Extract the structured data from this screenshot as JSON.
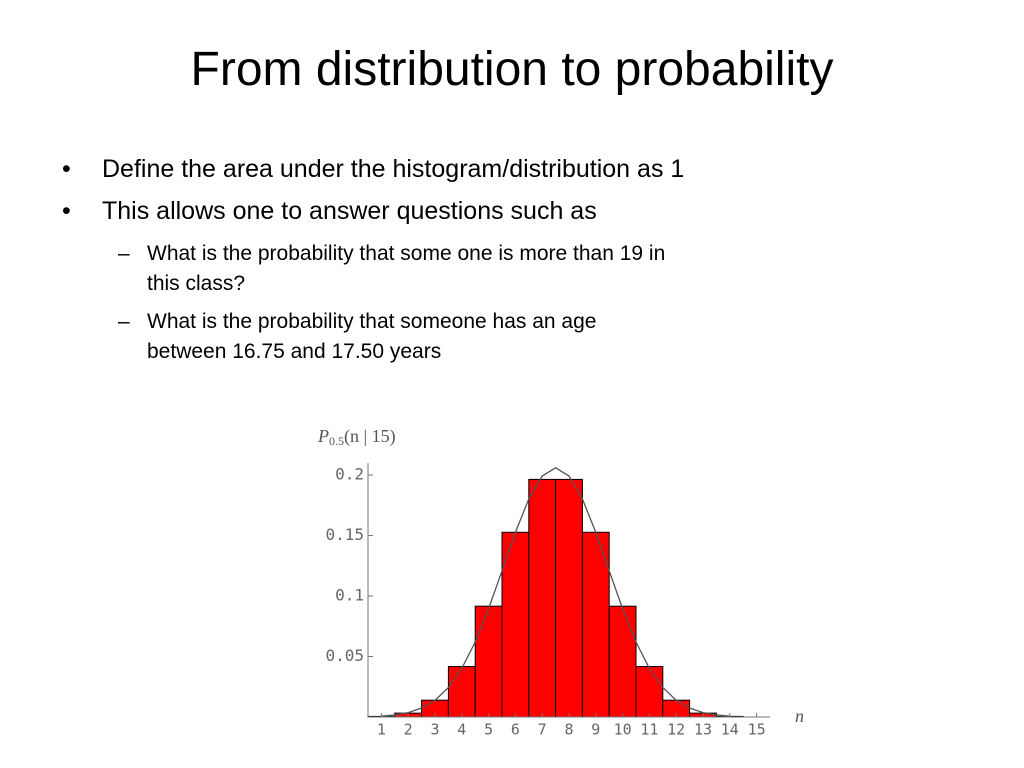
{
  "title": "From distribution to probability",
  "bullets": [
    {
      "text": "Define the area under the histogram/distribution as 1"
    },
    {
      "text": "This allows one to answer questions such as",
      "items": [
        {
          "lines": [
            "What is the probability that some one is more than 19 in",
            "this class?"
          ]
        },
        {
          "lines": [
            "What is the probability that someone has an age",
            "between 16.75 and 17.50 years"
          ]
        }
      ]
    }
  ],
  "chart_data": {
    "type": "bar",
    "ylabel": {
      "symbol": "P",
      "subscript": "0.5",
      "rest": "(n | 15)"
    },
    "xlabel": "n",
    "x": [
      1,
      2,
      3,
      4,
      5,
      6,
      7,
      8,
      9,
      10,
      11,
      12,
      13,
      14,
      15
    ],
    "values": [
      0.0005,
      0.0032,
      0.0139,
      0.0417,
      0.0916,
      0.1527,
      0.1964,
      0.1964,
      0.1527,
      0.0916,
      0.0417,
      0.0139,
      0.0032,
      0.0005,
      0.0
    ],
    "color": "#ff0000",
    "curve": {
      "color": "#555555",
      "x": [
        1,
        1.5,
        2,
        2.5,
        3,
        3.5,
        4,
        4.5,
        5,
        5.5,
        6,
        6.5,
        7,
        7.5,
        8,
        8.5,
        9,
        9.5,
        10,
        10.5,
        11,
        11.5,
        12,
        12.5,
        13,
        13.5,
        14
      ],
      "values": [
        0.0007,
        0.0017,
        0.0036,
        0.0074,
        0.0138,
        0.0244,
        0.0402,
        0.062,
        0.0895,
        0.1208,
        0.1526,
        0.1803,
        0.1992,
        0.206,
        0.1992,
        0.1803,
        0.1526,
        0.1208,
        0.0895,
        0.062,
        0.0402,
        0.0244,
        0.0138,
        0.0074,
        0.0036,
        0.0017,
        0.0007
      ]
    },
    "xlim": [
      0.5,
      15.5
    ],
    "xticks": [
      1,
      2,
      3,
      4,
      5,
      6,
      7,
      8,
      9,
      10,
      11,
      12,
      13,
      14,
      15
    ],
    "ylim": [
      0,
      0.205
    ],
    "yticks": [
      0.05,
      0.1,
      0.15,
      0.2
    ]
  }
}
